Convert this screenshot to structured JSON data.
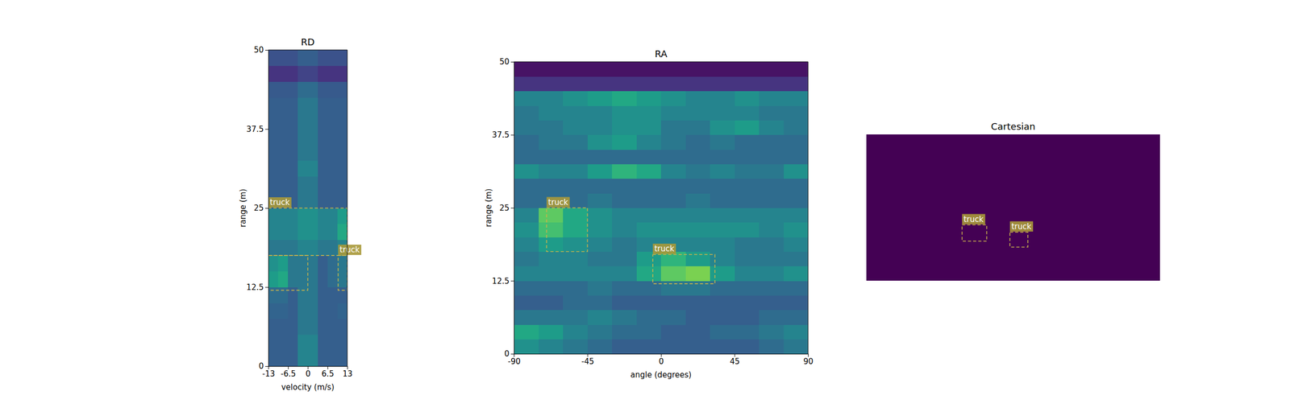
{
  "chart_data": [
    {
      "type": "heatmap",
      "title": "RD",
      "x_label": "velocity (m/s)",
      "y_label": "range (m)",
      "xlim": [
        -13,
        13
      ],
      "ylim": [
        0,
        50
      ],
      "xticks": [
        -13,
        -6.5,
        0,
        6.5,
        13
      ],
      "yticks": [
        0,
        12.5,
        25,
        37.5,
        50
      ],
      "zlim": [
        0,
        1
      ],
      "values": [
        [
          0.3,
          0.3,
          0.3,
          0.45,
          0.45,
          0.3,
          0.3,
          0.3
        ],
        [
          0.3,
          0.3,
          0.3,
          0.45,
          0.45,
          0.3,
          0.3,
          0.3
        ],
        [
          0.3,
          0.3,
          0.3,
          0.4,
          0.4,
          0.3,
          0.3,
          0.3
        ],
        [
          0.32,
          0.32,
          0.3,
          0.4,
          0.4,
          0.3,
          0.3,
          0.32
        ],
        [
          0.35,
          0.35,
          0.3,
          0.4,
          0.4,
          0.3,
          0.3,
          0.3
        ],
        [
          0.55,
          0.6,
          0.4,
          0.4,
          0.4,
          0.3,
          0.35,
          0.4
        ],
        [
          0.5,
          0.55,
          0.4,
          0.4,
          0.4,
          0.3,
          0.35,
          0.4
        ],
        [
          0.4,
          0.4,
          0.4,
          0.45,
          0.45,
          0.4,
          0.4,
          0.45
        ],
        [
          0.45,
          0.45,
          0.45,
          0.5,
          0.5,
          0.45,
          0.45,
          0.6
        ],
        [
          0.45,
          0.45,
          0.45,
          0.5,
          0.5,
          0.45,
          0.45,
          0.55
        ],
        [
          0.3,
          0.3,
          0.3,
          0.4,
          0.4,
          0.3,
          0.3,
          0.3
        ],
        [
          0.3,
          0.3,
          0.3,
          0.4,
          0.4,
          0.3,
          0.3,
          0.3
        ],
        [
          0.3,
          0.3,
          0.3,
          0.45,
          0.45,
          0.3,
          0.3,
          0.3
        ],
        [
          0.3,
          0.3,
          0.3,
          0.4,
          0.4,
          0.3,
          0.3,
          0.3
        ],
        [
          0.3,
          0.3,
          0.3,
          0.4,
          0.4,
          0.3,
          0.3,
          0.3
        ],
        [
          0.3,
          0.3,
          0.3,
          0.4,
          0.4,
          0.3,
          0.3,
          0.3
        ],
        [
          0.3,
          0.3,
          0.3,
          0.4,
          0.4,
          0.3,
          0.3,
          0.3
        ],
        [
          0.28,
          0.28,
          0.28,
          0.35,
          0.35,
          0.28,
          0.28,
          0.28
        ],
        [
          0.15,
          0.15,
          0.15,
          0.2,
          0.2,
          0.15,
          0.15,
          0.15
        ],
        [
          0.25,
          0.25,
          0.25,
          0.3,
          0.3,
          0.25,
          0.25,
          0.25
        ]
      ],
      "boxes": [
        {
          "label": "truck",
          "x": [
            -13,
            13
          ],
          "y": [
            17.5,
            25
          ]
        },
        {
          "label": null,
          "x": [
            -13,
            0
          ],
          "y": [
            12,
            17.5
          ]
        },
        {
          "label": "truck",
          "x": [
            10,
            13
          ],
          "y": [
            12,
            17.5
          ]
        }
      ]
    },
    {
      "type": "heatmap",
      "title": "RA",
      "x_label": "angle (degrees)",
      "y_label": "range (m)",
      "xlim": [
        -90,
        90
      ],
      "ylim": [
        0,
        50
      ],
      "xticks": [
        -90,
        -45,
        0,
        45,
        90
      ],
      "yticks": [
        0,
        12.5,
        25,
        37.5,
        50
      ],
      "zlim": [
        0,
        1
      ],
      "values": [
        [
          0.5,
          0.45,
          0.4,
          0.35,
          0.3,
          0.3,
          0.3,
          0.3,
          0.3,
          0.3,
          0.35,
          0.4
        ],
        [
          0.6,
          0.55,
          0.45,
          0.4,
          0.35,
          0.35,
          0.3,
          0.3,
          0.35,
          0.35,
          0.4,
          0.45
        ],
        [
          0.4,
          0.4,
          0.4,
          0.45,
          0.4,
          0.35,
          0.35,
          0.3,
          0.3,
          0.3,
          0.35,
          0.35
        ],
        [
          0.3,
          0.3,
          0.35,
          0.35,
          0.3,
          0.3,
          0.3,
          0.3,
          0.3,
          0.3,
          0.3,
          0.3
        ],
        [
          0.35,
          0.35,
          0.35,
          0.4,
          0.35,
          0.35,
          0.4,
          0.4,
          0.35,
          0.35,
          0.35,
          0.35
        ],
        [
          0.45,
          0.45,
          0.45,
          0.45,
          0.45,
          0.6,
          0.75,
          0.8,
          0.55,
          0.45,
          0.45,
          0.5
        ],
        [
          0.4,
          0.45,
          0.45,
          0.4,
          0.4,
          0.55,
          0.65,
          0.55,
          0.45,
          0.4,
          0.4,
          0.4
        ],
        [
          0.45,
          0.55,
          0.5,
          0.45,
          0.4,
          0.45,
          0.45,
          0.45,
          0.45,
          0.4,
          0.4,
          0.45
        ],
        [
          0.5,
          0.7,
          0.6,
          0.5,
          0.45,
          0.5,
          0.5,
          0.5,
          0.5,
          0.5,
          0.45,
          0.5
        ],
        [
          0.45,
          0.75,
          0.6,
          0.5,
          0.45,
          0.45,
          0.45,
          0.45,
          0.45,
          0.45,
          0.45,
          0.45
        ],
        [
          0.35,
          0.35,
          0.35,
          0.4,
          0.35,
          0.35,
          0.35,
          0.4,
          0.35,
          0.35,
          0.35,
          0.35
        ],
        [
          0.35,
          0.35,
          0.35,
          0.35,
          0.35,
          0.35,
          0.35,
          0.35,
          0.35,
          0.35,
          0.35,
          0.35
        ],
        [
          0.5,
          0.45,
          0.45,
          0.55,
          0.65,
          0.6,
          0.45,
          0.4,
          0.45,
          0.4,
          0.4,
          0.5
        ],
        [
          0.35,
          0.35,
          0.35,
          0.35,
          0.35,
          0.35,
          0.35,
          0.35,
          0.35,
          0.35,
          0.35,
          0.35
        ],
        [
          0.35,
          0.4,
          0.4,
          0.5,
          0.55,
          0.45,
          0.4,
          0.35,
          0.4,
          0.35,
          0.35,
          0.35
        ],
        [
          0.4,
          0.4,
          0.45,
          0.45,
          0.5,
          0.5,
          0.4,
          0.4,
          0.5,
          0.55,
          0.45,
          0.4
        ],
        [
          0.4,
          0.45,
          0.45,
          0.45,
          0.5,
          0.5,
          0.45,
          0.45,
          0.45,
          0.45,
          0.4,
          0.4
        ],
        [
          0.45,
          0.45,
          0.5,
          0.55,
          0.6,
          0.55,
          0.5,
          0.45,
          0.45,
          0.5,
          0.45,
          0.45
        ],
        [
          0.15,
          0.15,
          0.15,
          0.15,
          0.15,
          0.15,
          0.15,
          0.15,
          0.15,
          0.15,
          0.15,
          0.15
        ],
        [
          0.05,
          0.05,
          0.05,
          0.05,
          0.05,
          0.05,
          0.05,
          0.05,
          0.05,
          0.05,
          0.05,
          0.05
        ]
      ],
      "boxes": [
        {
          "label": "truck",
          "x": [
            -70,
            -45
          ],
          "y": [
            17.5,
            25
          ]
        },
        {
          "label": "truck",
          "x": [
            -5,
            33
          ],
          "y": [
            12,
            17
          ]
        }
      ]
    },
    {
      "type": "heatmap",
      "title": "Cartesian",
      "tick_labels": false,
      "xlim": [
        -50,
        50
      ],
      "ylim": [
        0,
        50
      ],
      "zlim": [
        0,
        1
      ],
      "values": [
        [
          0
        ]
      ],
      "boxes": [
        {
          "label": "truck",
          "x": [
            -17.4,
            -9
          ],
          "y": [
            13.5,
            19.1
          ]
        },
        {
          "label": "truck",
          "x": [
            -1.1,
            5
          ],
          "y": [
            11.5,
            16.6
          ]
        }
      ]
    }
  ]
}
